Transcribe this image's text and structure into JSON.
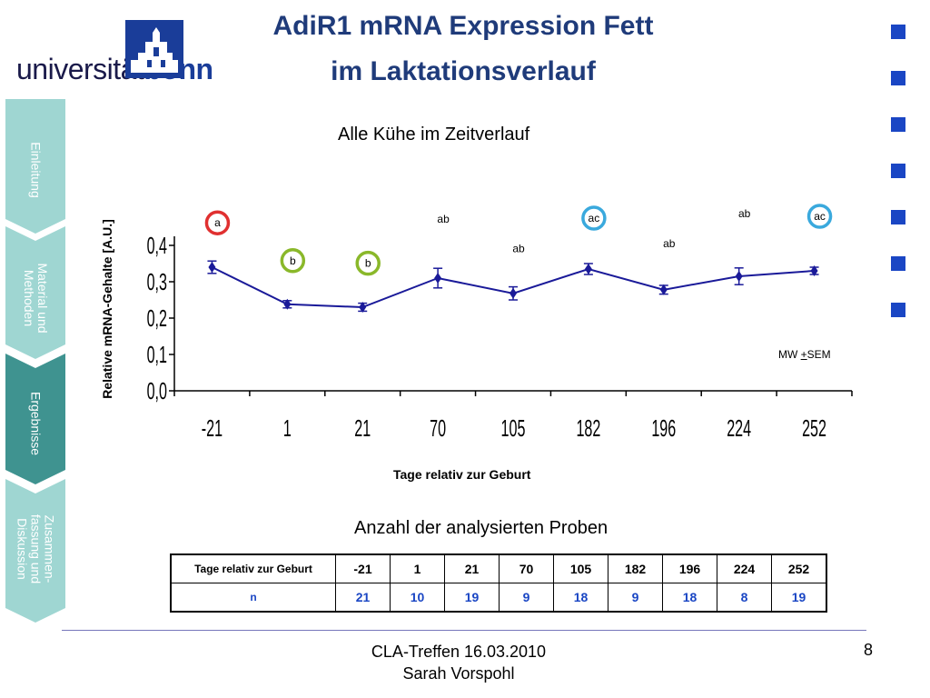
{
  "logo": {
    "text_prefix": "universität",
    "text_brand": "bonn"
  },
  "title": {
    "line1": "AdiR1 mRNA Expression Fett",
    "line2": "im Laktationsverlauf"
  },
  "sidebar": {
    "items": [
      {
        "label": "Einleitung",
        "color": "#9fd6d2"
      },
      {
        "label": "Material und\nMethoden",
        "color": "#9fd6d2"
      },
      {
        "label": "Ergebnisse",
        "color": "#3f9390"
      },
      {
        "label": "Zusammen-\nfassung und\nDiskussion",
        "color": "#9fd6d2"
      }
    ]
  },
  "chart_data": {
    "type": "line",
    "title": "Alle Kühe im Zeitverlauf",
    "xlabel": "Tage relativ zur Geburt",
    "ylabel": "Relative mRNA-Gehalte [A.U.]",
    "categories": [
      "-21",
      "1",
      "21",
      "70",
      "105",
      "182",
      "196",
      "224",
      "252"
    ],
    "series": [
      {
        "values": [
          0.34,
          0.238,
          0.23,
          0.31,
          0.268,
          0.335,
          0.278,
          0.315,
          0.33
        ],
        "sem": [
          0.017,
          0.01,
          0.011,
          0.027,
          0.018,
          0.015,
          0.012,
          0.023,
          0.01
        ],
        "color": "#1a1a99"
      }
    ],
    "ylim": [
      0,
      0.4
    ],
    "yticks": [
      "0,0",
      "0,1",
      "0,2",
      "0,3",
      "0,4"
    ],
    "annotation_prefix": "MW ",
    "annotation_pm": "+",
    "annotation_suffix": "SEM",
    "letters": [
      {
        "text": "a",
        "cat": 0,
        "circle": "#e03030"
      },
      {
        "text": "b",
        "cat": 1,
        "circle": "#8ab82a"
      },
      {
        "text": "b",
        "cat": 2,
        "circle": "#8ab82a"
      },
      {
        "text": "ab",
        "cat": 3,
        "circle": null
      },
      {
        "text": "ab",
        "cat": 4,
        "circle": null
      },
      {
        "text": "ac",
        "cat": 5,
        "circle": "#3aa9dd"
      },
      {
        "text": "ab",
        "cat": 6,
        "circle": null
      },
      {
        "text": "ab",
        "cat": 7,
        "circle": null
      },
      {
        "text": "ac",
        "cat": 8,
        "circle": "#3aa9dd"
      }
    ]
  },
  "table": {
    "title": "Anzahl der analysierten Proben",
    "header_label": "Tage relativ zur Geburt",
    "days": [
      "-21",
      "1",
      "21",
      "70",
      "105",
      "182",
      "196",
      "224",
      "252"
    ],
    "n_label": "n",
    "n_values": [
      "21",
      "10",
      "19",
      "9",
      "18",
      "9",
      "18",
      "8",
      "19"
    ]
  },
  "footer": {
    "line1": "CLA-Treffen 16.03.2010",
    "line2": "Sarah Vorspohl",
    "page": "8"
  },
  "colors": {
    "title": "#1f3b7a",
    "accent": "#1a46c4",
    "n_values": "#1a46c4"
  }
}
